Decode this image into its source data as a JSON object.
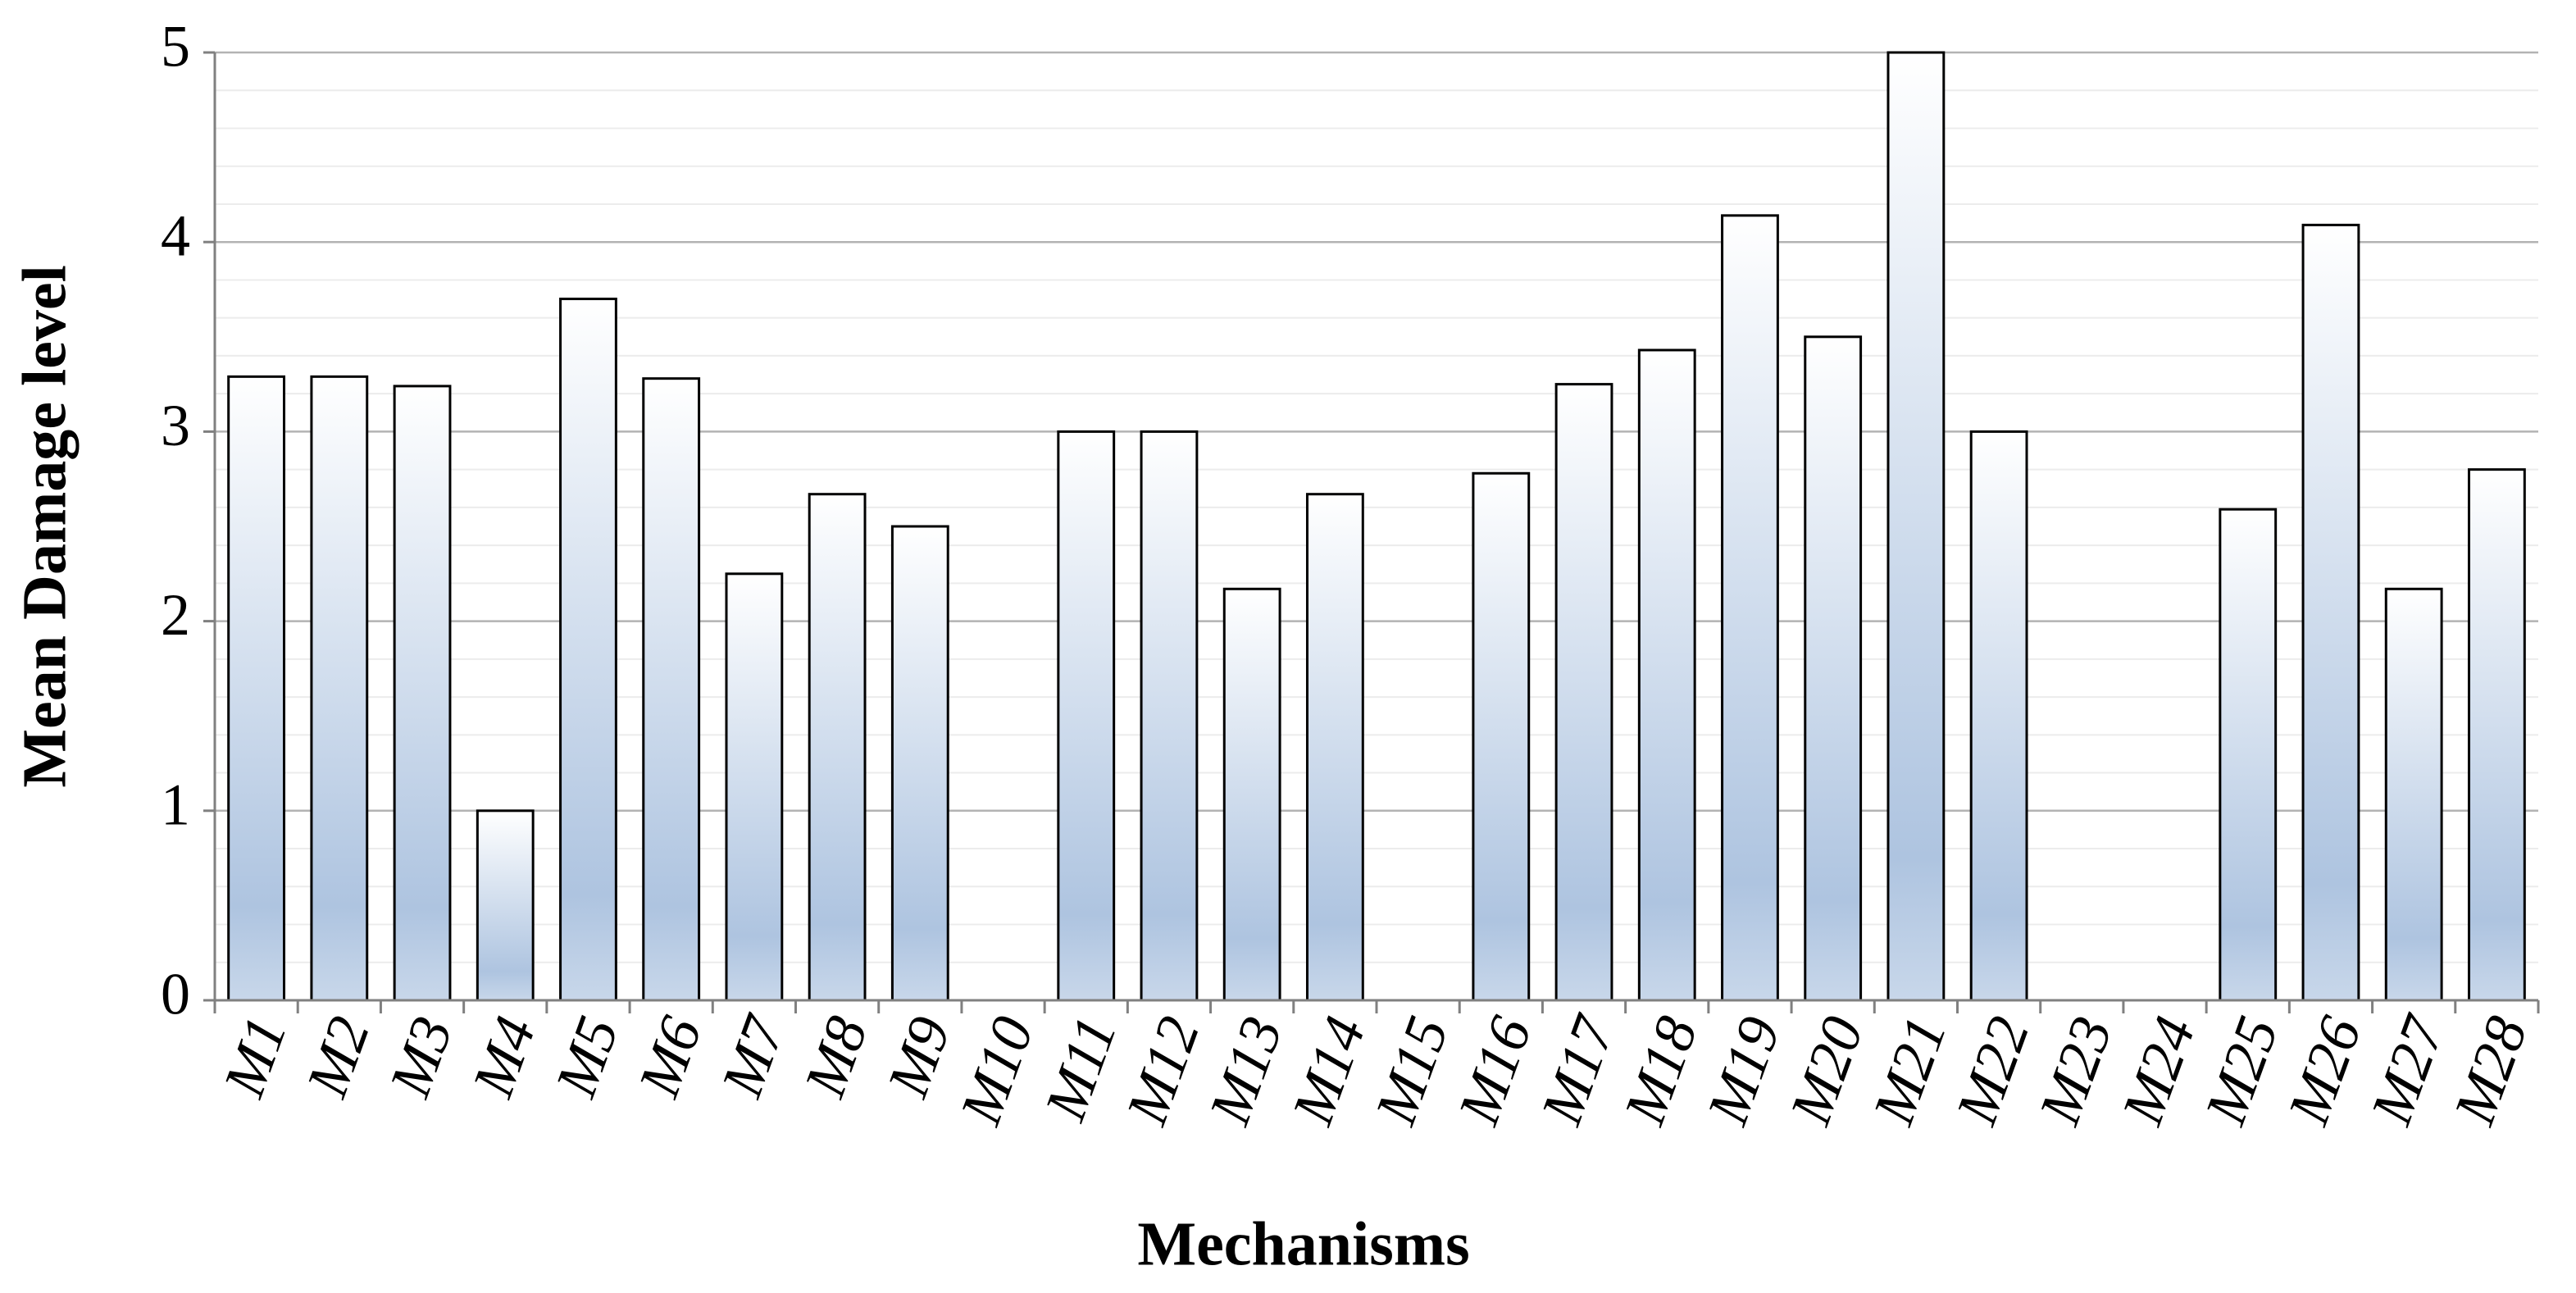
{
  "chart_data": {
    "type": "bar",
    "x_label": "Mechanisms",
    "y_label": "Mean Damage level",
    "categories": [
      "M1",
      "M2",
      "M3",
      "M4",
      "M5",
      "M6",
      "M7",
      "M8",
      "M9",
      "M10",
      "M11",
      "M12",
      "M13",
      "M14",
      "M15",
      "M16",
      "M17",
      "M18",
      "M19",
      "M20",
      "M21",
      "M22",
      "M23",
      "M24",
      "M25",
      "M26",
      "M27",
      "M28"
    ],
    "values": [
      3.29,
      3.29,
      3.24,
      1.0,
      3.7,
      3.28,
      2.25,
      2.67,
      2.5,
      0,
      3.0,
      3.0,
      2.17,
      2.67,
      0,
      2.78,
      3.25,
      3.43,
      4.14,
      3.5,
      5.0,
      3.0,
      0,
      0,
      2.59,
      4.09,
      2.17,
      2.8
    ],
    "ylim": [
      0,
      5
    ],
    "yticks": [
      0,
      1,
      2,
      3,
      4,
      5
    ],
    "minor_yticks": [
      0.2,
      0.4,
      0.6,
      0.8,
      1.2,
      1.4,
      1.6,
      1.8,
      2.2,
      2.4,
      2.6,
      2.8,
      3.2,
      3.4,
      3.6,
      3.8,
      4.2,
      4.4,
      4.6,
      4.8
    ],
    "grid": true,
    "color": "#aec4e0"
  }
}
